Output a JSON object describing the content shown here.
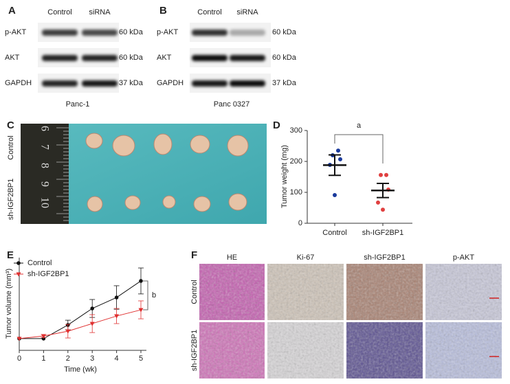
{
  "panel_labels": [
    "A",
    "B",
    "C",
    "D",
    "E",
    "F"
  ],
  "blot_a": {
    "columns": [
      "Control",
      "siRNA"
    ],
    "rows": [
      {
        "name": "p-AKT",
        "size": "60 kDa"
      },
      {
        "name": "AKT",
        "size": "60 kDa"
      },
      {
        "name": "GAPDH",
        "size": "37 kDa"
      }
    ],
    "caption": "Panc-1"
  },
  "blot_b": {
    "columns": [
      "Control",
      "siRNA"
    ],
    "rows": [
      {
        "name": "p-AKT",
        "size": "60 kDa"
      },
      {
        "name": "AKT",
        "size": "60 kDa"
      },
      {
        "name": "GAPDH",
        "size": "37 kDa"
      }
    ],
    "caption": "Panc 0327"
  },
  "photo_c": {
    "rows": [
      "Control",
      "sh-IGF2BP1"
    ],
    "ruler_labels": [
      "6",
      "7",
      "8",
      "9",
      "10"
    ]
  },
  "ihc_f": {
    "columns": [
      "HE",
      "Ki-67",
      "sh-IGF2BP1",
      "p-AKT"
    ],
    "rows": [
      "Control",
      "sh-IGF2BP1"
    ]
  },
  "chart_data": [
    {
      "type": "dot",
      "ylabel": "Tumor weight (mg)",
      "annotation": "a",
      "categories": [
        "Control",
        "sh-IGF2BP1"
      ],
      "groups": [
        {
          "color": "#1a3a9c",
          "values": [
            235,
            220,
            207,
            189,
            91
          ],
          "mean": 188,
          "error": 33
        },
        {
          "color": "#e04040",
          "values": [
            156,
            156,
            109,
            67,
            44
          ],
          "mean": 106,
          "error": 23
        }
      ],
      "ylim": [
        0,
        300
      ],
      "yticks": [
        0,
        100,
        200,
        300
      ]
    },
    {
      "type": "line",
      "ylabel": "Tumor volume (mm³)",
      "xlabel": "Time (wk)",
      "annotation": "b",
      "legend": "top-left",
      "x": [
        0,
        1,
        2,
        3,
        4,
        5
      ],
      "xlim": [
        0,
        5
      ],
      "xticks": [
        0,
        1,
        2,
        3,
        4,
        5
      ],
      "ylim": [
        0,
        6
      ],
      "series": [
        {
          "name": "Control",
          "color": "#111111",
          "marker": "circle",
          "values": [
            0.76,
            0.76,
            1.64,
            2.71,
            3.42,
            4.49
          ],
          "errors": [
            0,
            0,
            0.31,
            0.58,
            0.76,
            0.84
          ]
        },
        {
          "name": "sh-IGF2BP1",
          "color": "#e03030",
          "marker": "triangle",
          "values": [
            0.76,
            0.93,
            1.24,
            1.73,
            2.22,
            2.62
          ],
          "errors": [
            0,
            0.1,
            0.44,
            0.58,
            0.49,
            0.58
          ]
        }
      ]
    }
  ]
}
